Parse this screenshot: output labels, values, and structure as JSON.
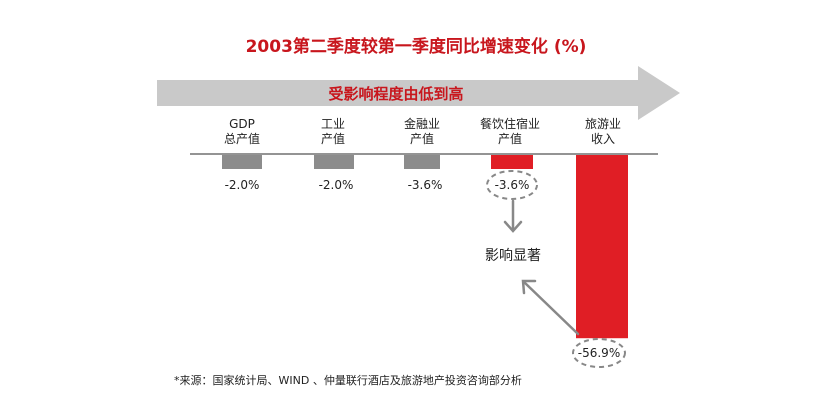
{
  "chart_data": {
    "type": "bar",
    "title": "2003第二季度较第一季度同比增速变化 (%)",
    "banner": "受影响程度由低到高",
    "categories": [
      {
        "line1": "GDP",
        "line2": "总产值"
      },
      {
        "line1": "工业",
        "line2": "产值"
      },
      {
        "line1": "金融业",
        "line2": "产值"
      },
      {
        "line1": "餐饮住宿业",
        "line2": "产值"
      },
      {
        "line1": "旅游业",
        "line2": "收入"
      }
    ],
    "values": [
      -2.0,
      -2.0,
      -3.6,
      -3.6,
      -56.9
    ],
    "value_labels": [
      "-2.0%",
      "-2.0%",
      "-3.6%",
      "-3.6%",
      "-56.9%"
    ],
    "bar_colors": [
      "#8c8c8c",
      "#8c8c8c",
      "#8c8c8c",
      "#e01e25",
      "#e01e25"
    ],
    "highlighted": [
      3,
      4
    ],
    "annotation": "影响显著",
    "source": "*来源：国家统计局、WIND 、仲量联行酒店及旅游地产投资咨询部分析"
  }
}
